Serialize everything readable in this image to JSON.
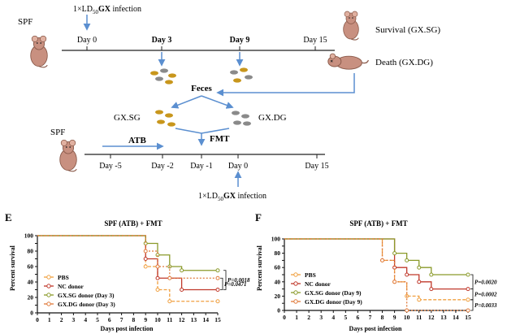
{
  "schematic": {
    "top": {
      "spf_label": "SPF",
      "infection_prefix": "1×LD",
      "infection_sub": "50",
      "infection_agent": "GX",
      "infection_suffix": " infection",
      "ticks": [
        "Day 0",
        "Day 3",
        "Day 9",
        "Day 15"
      ],
      "survival_label": "Survival (GX.SG)",
      "death_label": "Death (GX.DG)",
      "feces_label": "Feces"
    },
    "middle": {
      "left_label": "GX.SG",
      "right_label": "GX.DG"
    },
    "bottom": {
      "spf_label": "SPF",
      "atb_label": "ATB",
      "fmt_label": "FMT",
      "ticks": [
        "Day -5",
        "Day -2",
        "Day -1",
        "Day 0",
        "Day 15"
      ],
      "infection_prefix": "1×LD",
      "infection_sub": "50",
      "infection_agent": "GX",
      "infection_suffix": " infection"
    },
    "colors": {
      "arrow": "#5b8fd0",
      "pellet_gold": "#c8961c",
      "pellet_gray": "#8a8a8a",
      "mouse": "#b07a68"
    }
  },
  "chart_data": [
    {
      "type": "line",
      "step": true,
      "panel_label": "E",
      "title": "SPF (ATB) + FMT",
      "xlabel": "Days post infection",
      "ylabel": "Percent survival",
      "xlim": [
        0,
        15
      ],
      "ylim": [
        0,
        100
      ],
      "xticks": [
        0,
        1,
        2,
        3,
        4,
        5,
        6,
        7,
        8,
        9,
        10,
        11,
        12,
        13,
        14,
        15
      ],
      "yticks": [
        0,
        10,
        20,
        30,
        40,
        50,
        60,
        70,
        80,
        90,
        100
      ],
      "legend_position": "bottom-left",
      "series": [
        {
          "name": "PBS",
          "color": "#f0a040",
          "x": [
            0,
            9,
            10,
            11,
            15
          ],
          "y": [
            100,
            60,
            30,
            15,
            15
          ]
        },
        {
          "name": "NC donor",
          "color": "#c0392b",
          "x": [
            0,
            9,
            10,
            12,
            15
          ],
          "y": [
            100,
            70,
            45,
            30,
            30
          ]
        },
        {
          "name": "GX.SG donor (Day 3)",
          "color": "#8a9a2a",
          "x": [
            0,
            9,
            10,
            11,
            12,
            15
          ],
          "y": [
            100,
            90,
            75,
            60,
            55,
            55
          ]
        },
        {
          "name": "GX.DG donor (Day 3)",
          "color": "#e07a3a",
          "x": [
            0,
            9,
            10,
            11,
            15
          ],
          "y": [
            100,
            80,
            60,
            45,
            45
          ]
        }
      ],
      "pvalues": [
        "P=0.0471",
        "P=0.0018"
      ]
    },
    {
      "type": "line",
      "step": true,
      "panel_label": "F",
      "title": "SPF (ATB) + FMT",
      "xlabel": "Days post infection",
      "ylabel": "Percent survival",
      "xlim": [
        0,
        15
      ],
      "ylim": [
        0,
        100
      ],
      "xticks": [
        0,
        1,
        2,
        3,
        4,
        5,
        6,
        7,
        8,
        9,
        10,
        11,
        12,
        13,
        14,
        15
      ],
      "yticks": [
        0,
        10,
        20,
        30,
        40,
        50,
        60,
        70,
        80,
        90,
        100
      ],
      "legend_position": "bottom-left",
      "series": [
        {
          "name": "PBS",
          "color": "#f0a040",
          "x": [
            0,
            8,
            9,
            10,
            11,
            15
          ],
          "y": [
            100,
            70,
            40,
            20,
            15,
            15
          ]
        },
        {
          "name": "NC donor",
          "color": "#c0392b",
          "x": [
            0,
            9,
            10,
            11,
            12,
            15
          ],
          "y": [
            100,
            60,
            50,
            40,
            30,
            30
          ]
        },
        {
          "name": "GX.SG donor (Day 9)",
          "color": "#8a9a2a",
          "x": [
            0,
            9,
            10,
            11,
            12,
            15
          ],
          "y": [
            100,
            80,
            70,
            60,
            50,
            50
          ]
        },
        {
          "name": "GX.DG donor (Day 9)",
          "color": "#e07a3a",
          "x": [
            0,
            8,
            9,
            10,
            15
          ],
          "y": [
            100,
            70,
            40,
            0,
            0
          ]
        }
      ],
      "pvalues": [
        "P=0.0020",
        "P=0.0002",
        "P=0.0033"
      ]
    }
  ]
}
